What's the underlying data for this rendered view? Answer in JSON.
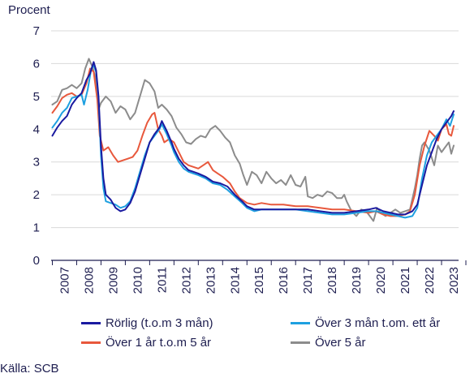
{
  "chart_data": {
    "type": "line",
    "ylabel": "Procent",
    "ylim": [
      0,
      7
    ],
    "yticks": [
      "0",
      "1",
      "2",
      "3",
      "4",
      "5",
      "6",
      "7"
    ],
    "xlim": [
      2006.95,
      2023.7
    ],
    "xticks": [
      "2007",
      "2008",
      "2009",
      "2010",
      "2011",
      "2012",
      "2013",
      "2014",
      "2015",
      "2016",
      "2017",
      "2018",
      "2019",
      "2020",
      "2021",
      "2022",
      "2023"
    ],
    "grid": "horizontal",
    "legend_position": "bottom",
    "series": [
      {
        "name": "Rörlig (t.o.m 3 mån)",
        "color": "#1a1aa0",
        "points": [
          [
            2007.0,
            3.8
          ],
          [
            2007.2,
            4.05
          ],
          [
            2007.4,
            4.25
          ],
          [
            2007.6,
            4.4
          ],
          [
            2007.8,
            4.75
          ],
          [
            2008.0,
            4.95
          ],
          [
            2008.2,
            5.1
          ],
          [
            2008.4,
            5.5
          ],
          [
            2008.55,
            5.7
          ],
          [
            2008.7,
            6.05
          ],
          [
            2008.8,
            5.8
          ],
          [
            2008.9,
            5.0
          ],
          [
            2009.0,
            3.5
          ],
          [
            2009.1,
            2.5
          ],
          [
            2009.2,
            2.0
          ],
          [
            2009.4,
            1.85
          ],
          [
            2009.6,
            1.6
          ],
          [
            2009.8,
            1.5
          ],
          [
            2010.0,
            1.55
          ],
          [
            2010.2,
            1.75
          ],
          [
            2010.4,
            2.1
          ],
          [
            2010.6,
            2.6
          ],
          [
            2010.8,
            3.1
          ],
          [
            2011.0,
            3.6
          ],
          [
            2011.2,
            3.85
          ],
          [
            2011.4,
            4.05
          ],
          [
            2011.5,
            4.25
          ],
          [
            2011.7,
            3.95
          ],
          [
            2011.9,
            3.6
          ],
          [
            2012.0,
            3.4
          ],
          [
            2012.2,
            3.1
          ],
          [
            2012.4,
            2.9
          ],
          [
            2012.6,
            2.75
          ],
          [
            2012.8,
            2.7
          ],
          [
            2013.0,
            2.65
          ],
          [
            2013.3,
            2.55
          ],
          [
            2013.6,
            2.4
          ],
          [
            2013.9,
            2.35
          ],
          [
            2014.2,
            2.25
          ],
          [
            2014.5,
            2.0
          ],
          [
            2014.8,
            1.8
          ],
          [
            2015.0,
            1.65
          ],
          [
            2015.3,
            1.55
          ],
          [
            2015.6,
            1.55
          ],
          [
            2016.0,
            1.55
          ],
          [
            2016.5,
            1.55
          ],
          [
            2017.0,
            1.55
          ],
          [
            2017.5,
            1.55
          ],
          [
            2018.0,
            1.5
          ],
          [
            2018.5,
            1.45
          ],
          [
            2019.0,
            1.45
          ],
          [
            2019.5,
            1.5
          ],
          [
            2020.0,
            1.55
          ],
          [
            2020.3,
            1.6
          ],
          [
            2020.6,
            1.5
          ],
          [
            2020.9,
            1.45
          ],
          [
            2021.2,
            1.4
          ],
          [
            2021.5,
            1.4
          ],
          [
            2021.8,
            1.5
          ],
          [
            2022.0,
            1.7
          ],
          [
            2022.2,
            2.3
          ],
          [
            2022.4,
            2.9
          ],
          [
            2022.6,
            3.3
          ],
          [
            2022.8,
            3.7
          ],
          [
            2023.0,
            4.0
          ],
          [
            2023.2,
            4.2
          ],
          [
            2023.4,
            4.4
          ],
          [
            2023.5,
            4.55
          ]
        ]
      },
      {
        "name": "Över 3 mån t.om. ett år",
        "color": "#1ea0e0",
        "points": [
          [
            2007.0,
            4.05
          ],
          [
            2007.2,
            4.25
          ],
          [
            2007.4,
            4.5
          ],
          [
            2007.6,
            4.65
          ],
          [
            2007.8,
            4.95
          ],
          [
            2008.0,
            5.0
          ],
          [
            2008.2,
            5.05
          ],
          [
            2008.3,
            4.75
          ],
          [
            2008.45,
            5.2
          ],
          [
            2008.6,
            5.85
          ],
          [
            2008.7,
            5.95
          ],
          [
            2008.8,
            5.75
          ],
          [
            2008.9,
            4.9
          ],
          [
            2009.0,
            3.2
          ],
          [
            2009.1,
            2.2
          ],
          [
            2009.2,
            1.8
          ],
          [
            2009.4,
            1.75
          ],
          [
            2009.6,
            1.7
          ],
          [
            2009.8,
            1.6
          ],
          [
            2010.0,
            1.65
          ],
          [
            2010.2,
            1.8
          ],
          [
            2010.4,
            2.2
          ],
          [
            2010.6,
            2.7
          ],
          [
            2010.8,
            3.2
          ],
          [
            2011.0,
            3.6
          ],
          [
            2011.2,
            3.8
          ],
          [
            2011.4,
            4.0
          ],
          [
            2011.5,
            4.15
          ],
          [
            2011.7,
            3.85
          ],
          [
            2011.9,
            3.5
          ],
          [
            2012.0,
            3.3
          ],
          [
            2012.2,
            3.0
          ],
          [
            2012.4,
            2.8
          ],
          [
            2012.6,
            2.7
          ],
          [
            2012.8,
            2.65
          ],
          [
            2013.0,
            2.6
          ],
          [
            2013.3,
            2.5
          ],
          [
            2013.6,
            2.35
          ],
          [
            2013.9,
            2.3
          ],
          [
            2014.2,
            2.15
          ],
          [
            2014.5,
            1.95
          ],
          [
            2014.8,
            1.75
          ],
          [
            2015.0,
            1.6
          ],
          [
            2015.3,
            1.5
          ],
          [
            2015.6,
            1.55
          ],
          [
            2016.0,
            1.55
          ],
          [
            2016.5,
            1.55
          ],
          [
            2017.0,
            1.55
          ],
          [
            2017.5,
            1.5
          ],
          [
            2018.0,
            1.45
          ],
          [
            2018.5,
            1.4
          ],
          [
            2019.0,
            1.4
          ],
          [
            2019.5,
            1.45
          ],
          [
            2020.0,
            1.5
          ],
          [
            2020.3,
            1.5
          ],
          [
            2020.6,
            1.45
          ],
          [
            2020.9,
            1.4
          ],
          [
            2021.2,
            1.35
          ],
          [
            2021.5,
            1.3
          ],
          [
            2021.8,
            1.35
          ],
          [
            2022.0,
            1.6
          ],
          [
            2022.2,
            2.5
          ],
          [
            2022.4,
            3.2
          ],
          [
            2022.6,
            3.6
          ],
          [
            2022.8,
            3.8
          ],
          [
            2023.0,
            4.0
          ],
          [
            2023.2,
            4.3
          ],
          [
            2023.35,
            4.1
          ],
          [
            2023.5,
            4.45
          ]
        ]
      },
      {
        "name": "Över 1 år t.o.m 5 år",
        "color": "#e8583c",
        "points": [
          [
            2007.0,
            4.5
          ],
          [
            2007.2,
            4.7
          ],
          [
            2007.4,
            4.95
          ],
          [
            2007.6,
            5.05
          ],
          [
            2007.8,
            5.1
          ],
          [
            2008.0,
            5.0
          ],
          [
            2008.2,
            5.05
          ],
          [
            2008.4,
            5.4
          ],
          [
            2008.55,
            5.85
          ],
          [
            2008.7,
            5.75
          ],
          [
            2008.85,
            4.9
          ],
          [
            2008.95,
            3.8
          ],
          [
            2009.1,
            3.35
          ],
          [
            2009.3,
            3.45
          ],
          [
            2009.5,
            3.2
          ],
          [
            2009.7,
            3.0
          ],
          [
            2009.9,
            3.05
          ],
          [
            2010.1,
            3.1
          ],
          [
            2010.3,
            3.15
          ],
          [
            2010.5,
            3.35
          ],
          [
            2010.7,
            3.8
          ],
          [
            2010.9,
            4.2
          ],
          [
            2011.1,
            4.45
          ],
          [
            2011.2,
            4.5
          ],
          [
            2011.35,
            4.0
          ],
          [
            2011.5,
            3.8
          ],
          [
            2011.6,
            3.6
          ],
          [
            2011.8,
            3.7
          ],
          [
            2012.0,
            3.6
          ],
          [
            2012.2,
            3.3
          ],
          [
            2012.4,
            3.0
          ],
          [
            2012.6,
            2.9
          ],
          [
            2012.8,
            2.85
          ],
          [
            2013.0,
            2.8
          ],
          [
            2013.2,
            2.9
          ],
          [
            2013.4,
            3.0
          ],
          [
            2013.6,
            2.75
          ],
          [
            2013.8,
            2.65
          ],
          [
            2014.0,
            2.55
          ],
          [
            2014.3,
            2.35
          ],
          [
            2014.5,
            2.1
          ],
          [
            2014.7,
            1.9
          ],
          [
            2015.0,
            1.75
          ],
          [
            2015.3,
            1.7
          ],
          [
            2015.6,
            1.75
          ],
          [
            2016.0,
            1.7
          ],
          [
            2016.5,
            1.7
          ],
          [
            2017.0,
            1.65
          ],
          [
            2017.5,
            1.65
          ],
          [
            2018.0,
            1.6
          ],
          [
            2018.5,
            1.55
          ],
          [
            2019.0,
            1.55
          ],
          [
            2019.5,
            1.5
          ],
          [
            2020.0,
            1.45
          ],
          [
            2020.3,
            1.5
          ],
          [
            2020.6,
            1.4
          ],
          [
            2020.9,
            1.35
          ],
          [
            2021.2,
            1.35
          ],
          [
            2021.5,
            1.4
          ],
          [
            2021.7,
            1.5
          ],
          [
            2021.9,
            2.0
          ],
          [
            2022.1,
            2.9
          ],
          [
            2022.3,
            3.5
          ],
          [
            2022.5,
            3.95
          ],
          [
            2022.7,
            3.8
          ],
          [
            2022.85,
            3.65
          ],
          [
            2023.0,
            4.0
          ],
          [
            2023.2,
            4.15
          ],
          [
            2023.3,
            3.85
          ],
          [
            2023.4,
            3.8
          ],
          [
            2023.5,
            4.1
          ]
        ]
      },
      {
        "name": "Över 5 år",
        "color": "#8c8c8c",
        "points": [
          [
            2007.0,
            4.75
          ],
          [
            2007.2,
            4.85
          ],
          [
            2007.4,
            5.2
          ],
          [
            2007.6,
            5.25
          ],
          [
            2007.8,
            5.35
          ],
          [
            2008.0,
            5.25
          ],
          [
            2008.2,
            5.4
          ],
          [
            2008.35,
            5.85
          ],
          [
            2008.5,
            6.15
          ],
          [
            2008.65,
            5.9
          ],
          [
            2008.8,
            5.5
          ],
          [
            2008.9,
            4.6
          ],
          [
            2009.0,
            4.8
          ],
          [
            2009.2,
            5.0
          ],
          [
            2009.4,
            4.85
          ],
          [
            2009.6,
            4.5
          ],
          [
            2009.8,
            4.7
          ],
          [
            2010.0,
            4.6
          ],
          [
            2010.2,
            4.3
          ],
          [
            2010.4,
            4.5
          ],
          [
            2010.6,
            5.0
          ],
          [
            2010.8,
            5.5
          ],
          [
            2011.0,
            5.4
          ],
          [
            2011.2,
            5.15
          ],
          [
            2011.35,
            4.65
          ],
          [
            2011.5,
            4.75
          ],
          [
            2011.7,
            4.6
          ],
          [
            2011.9,
            4.4
          ],
          [
            2012.1,
            4.05
          ],
          [
            2012.3,
            3.85
          ],
          [
            2012.5,
            3.6
          ],
          [
            2012.7,
            3.55
          ],
          [
            2012.9,
            3.7
          ],
          [
            2013.1,
            3.8
          ],
          [
            2013.3,
            3.75
          ],
          [
            2013.5,
            4.0
          ],
          [
            2013.7,
            4.1
          ],
          [
            2013.9,
            3.95
          ],
          [
            2014.1,
            3.75
          ],
          [
            2014.3,
            3.6
          ],
          [
            2014.5,
            3.2
          ],
          [
            2014.7,
            2.95
          ],
          [
            2014.85,
            2.6
          ],
          [
            2015.0,
            2.3
          ],
          [
            2015.2,
            2.7
          ],
          [
            2015.4,
            2.6
          ],
          [
            2015.6,
            2.35
          ],
          [
            2015.8,
            2.7
          ],
          [
            2016.0,
            2.5
          ],
          [
            2016.2,
            2.35
          ],
          [
            2016.4,
            2.45
          ],
          [
            2016.6,
            2.3
          ],
          [
            2016.8,
            2.6
          ],
          [
            2017.0,
            2.3
          ],
          [
            2017.2,
            2.25
          ],
          [
            2017.4,
            2.55
          ],
          [
            2017.5,
            1.95
          ],
          [
            2017.7,
            1.9
          ],
          [
            2017.9,
            2.0
          ],
          [
            2018.1,
            1.95
          ],
          [
            2018.3,
            2.1
          ],
          [
            2018.5,
            2.05
          ],
          [
            2018.7,
            1.9
          ],
          [
            2018.9,
            1.9
          ],
          [
            2019.0,
            2.0
          ],
          [
            2019.1,
            1.8
          ],
          [
            2019.3,
            1.5
          ],
          [
            2019.5,
            1.35
          ],
          [
            2019.7,
            1.55
          ],
          [
            2019.9,
            1.5
          ],
          [
            2020.1,
            1.3
          ],
          [
            2020.2,
            1.2
          ],
          [
            2020.35,
            1.6
          ],
          [
            2020.5,
            1.45
          ],
          [
            2020.7,
            1.35
          ],
          [
            2020.9,
            1.45
          ],
          [
            2021.1,
            1.55
          ],
          [
            2021.3,
            1.45
          ],
          [
            2021.5,
            1.5
          ],
          [
            2021.7,
            1.55
          ],
          [
            2021.9,
            2.2
          ],
          [
            2022.0,
            2.6
          ],
          [
            2022.1,
            3.1
          ],
          [
            2022.2,
            3.5
          ],
          [
            2022.3,
            3.6
          ],
          [
            2022.5,
            3.35
          ],
          [
            2022.7,
            2.9
          ],
          [
            2022.85,
            3.5
          ],
          [
            2023.0,
            3.3
          ],
          [
            2023.15,
            3.45
          ],
          [
            2023.3,
            3.6
          ],
          [
            2023.4,
            3.25
          ],
          [
            2023.5,
            3.5
          ]
        ]
      }
    ]
  },
  "source": "Källa: SCB"
}
